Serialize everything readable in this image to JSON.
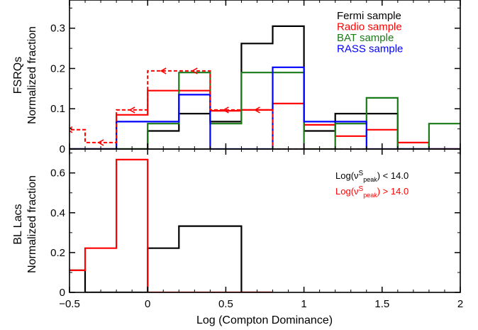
{
  "chart_data": [
    {
      "type": "histogram",
      "panel_label": "FSRQs",
      "ylabel": "Normalized fraction",
      "xlabel": "",
      "xlim": [
        -0.5,
        2.0
      ],
      "ylim": [
        0,
        0.37
      ],
      "yticks": [
        0,
        0.1,
        0.2,
        0.3
      ],
      "ytick_labels": [
        "0",
        "0.1",
        "0.2",
        "0.3"
      ],
      "bin_edges": [
        -0.6,
        -0.4,
        -0.2,
        0.0,
        0.2,
        0.4,
        0.6,
        0.8,
        1.0,
        1.2,
        1.4,
        1.6,
        1.8,
        2.0
      ],
      "legend_position": "top-right",
      "series": [
        {
          "name": "Fermi sample",
          "color": "#000000",
          "values": [
            0,
            0,
            0,
            0.045,
            0.088,
            0.068,
            0.262,
            0.305,
            0.045,
            0.088,
            0.088,
            0,
            0
          ],
          "style": "solid"
        },
        {
          "name": "Radio sample",
          "color": "#ff0000",
          "values": [
            0,
            0,
            0.085,
            0.145,
            0.145,
            0.095,
            0.097,
            0.113,
            0.06,
            0.032,
            0.048,
            0.016,
            0
          ],
          "style": "solid"
        },
        {
          "name": "BAT sample",
          "color": "#1a7a1a",
          "values": [
            0,
            0,
            0,
            0.063,
            0.19,
            0.063,
            0.19,
            0.19,
            0,
            0.063,
            0.127,
            0,
            0.063
          ],
          "style": "solid"
        },
        {
          "name": "RASS sample",
          "color": "#0000ff",
          "values": [
            0,
            0,
            0.068,
            0.068,
            0.135,
            0,
            0,
            0.203,
            0.068,
            0.068,
            0,
            0,
            0
          ],
          "style": "solid"
        },
        {
          "name": "",
          "color": "#ff0000",
          "style": "dashed-upper-limit",
          "values": [
            0.048,
            0.016,
            0.097,
            0.194,
            0.194,
            0.097,
            0.097,
            0,
            0,
            0,
            0,
            0,
            0
          ]
        }
      ]
    },
    {
      "type": "histogram",
      "panel_label": "BL Lacs",
      "ylabel": "Normalized fraction",
      "xlabel": "Log (Compton Dominance)",
      "xlim": [
        -0.5,
        2.0
      ],
      "ylim": [
        0,
        0.72
      ],
      "xticks": [
        -0.5,
        0,
        0.5,
        1,
        1.5,
        2
      ],
      "xtick_labels": [
        "−0.5",
        "0",
        "0.5",
        "1",
        "1.5",
        "2"
      ],
      "yticks": [
        0,
        0.2,
        0.4,
        0.6
      ],
      "ytick_labels": [
        "0",
        "0.2",
        "0.4",
        "0.6"
      ],
      "bin_edges": [
        -0.6,
        -0.4,
        -0.2,
        0.0,
        0.2,
        0.4,
        0.6,
        0.8
      ],
      "legend_position": "top-right",
      "legend": [
        {
          "prefix": "Log(ν",
          "sup": "S",
          "sub": "peak",
          "suffix": ") < 14.0",
          "color": "#000000"
        },
        {
          "prefix": "Log(ν",
          "sup": "S",
          "sub": "peak",
          "suffix": ") > 14.0",
          "color": "#ff0000"
        }
      ],
      "series": [
        {
          "name": "",
          "color": "#000000",
          "values": [
            0.111,
            0,
            0,
            0.222,
            0.333,
            0.333,
            0
          ]
        },
        {
          "name": "",
          "color": "#ff0000",
          "values": [
            0.111,
            0.222,
            0.667,
            0,
            0,
            0,
            0
          ]
        }
      ]
    }
  ]
}
